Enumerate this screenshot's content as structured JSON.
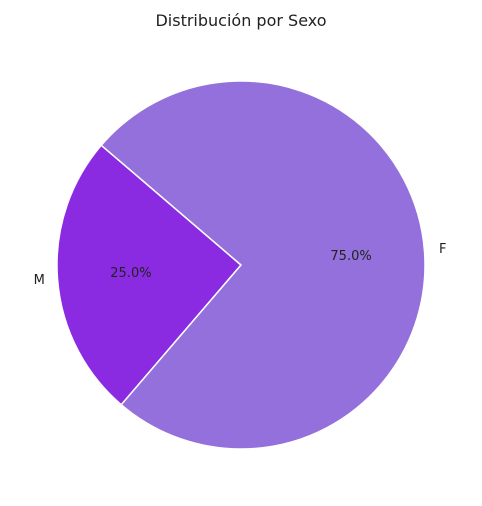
{
  "chart_data": {
    "type": "pie",
    "title": "Distribución por Sexo",
    "categories": [
      "M",
      "F"
    ],
    "values": [
      25.0,
      75.0
    ],
    "percent_labels": [
      "25.0%",
      "75.0%"
    ],
    "colors": [
      "#8a2be2",
      "#9370db"
    ],
    "edge_color": "#ffffff",
    "legend": false
  }
}
